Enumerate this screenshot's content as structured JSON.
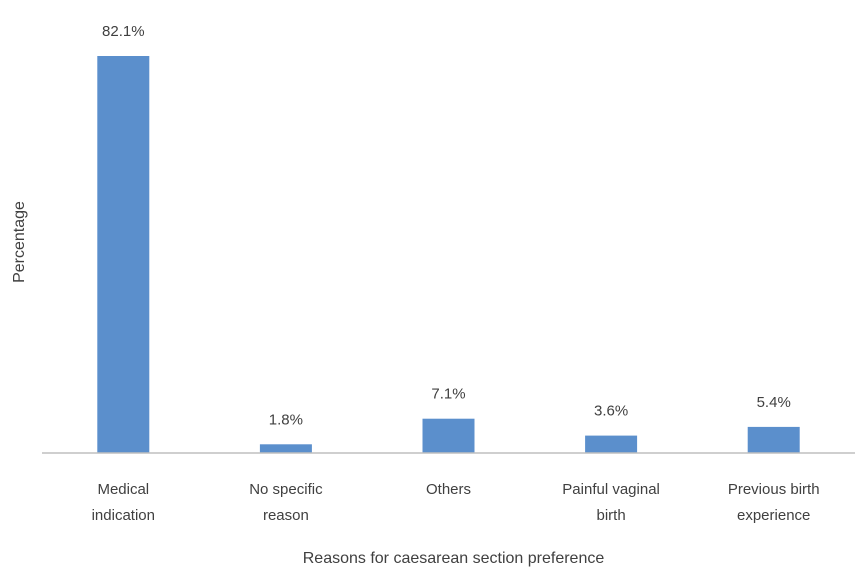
{
  "chart_data": {
    "type": "bar",
    "categories": [
      [
        "Medical",
        "indication"
      ],
      [
        "No specific",
        "reason"
      ],
      [
        "Others"
      ],
      [
        "Painful vaginal",
        "birth"
      ],
      [
        "Previous birth",
        "experience"
      ]
    ],
    "values": [
      82.1,
      1.8,
      7.1,
      3.6,
      5.4
    ],
    "data_labels": [
      "82.1%",
      "1.8%",
      "7.1%",
      "3.6%",
      "5.4%"
    ],
    "xlabel": "Reasons for caesarean section preference",
    "ylabel": "Percentage",
    "ylim": [
      0,
      85
    ],
    "bar_color": "#5B8FCC",
    "axis_color": "#BFBFBF",
    "text_color": "#404040",
    "grid": false,
    "legend": "none"
  }
}
